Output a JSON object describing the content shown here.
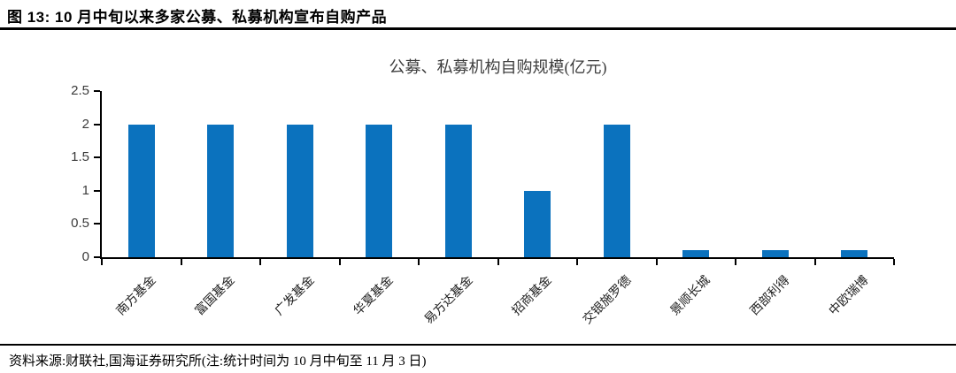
{
  "figure": {
    "caption": "图 13:  10 月中旬以来多家公募、私募机构宣布自购产品"
  },
  "chart_data": {
    "type": "bar",
    "title": "公募、私募机构自购规模(亿元)",
    "categories": [
      "南方基金",
      "富国基金",
      "广发基金",
      "华夏基金",
      "易方达基金",
      "招商基金",
      "交银施罗德",
      "景顺长城",
      "西部利得",
      "中欧瑞博"
    ],
    "values": [
      2,
      2,
      2,
      2,
      2,
      1,
      2,
      0.1,
      0.1,
      0.1
    ],
    "xlabel": "",
    "ylabel": "",
    "ylim": [
      0,
      2.5
    ],
    "yticks": [
      0,
      0.5,
      1,
      1.5,
      2,
      2.5
    ],
    "bar_color": "#0b72be",
    "axis_color": "#000000",
    "tick_label_color": "#3a3a3a",
    "grid": false,
    "legend_position": "none"
  },
  "footer": {
    "source": "资料来源:财联社,国海证券研究所(注:统计时间为 10 月中旬至 11 月 3 日)"
  }
}
